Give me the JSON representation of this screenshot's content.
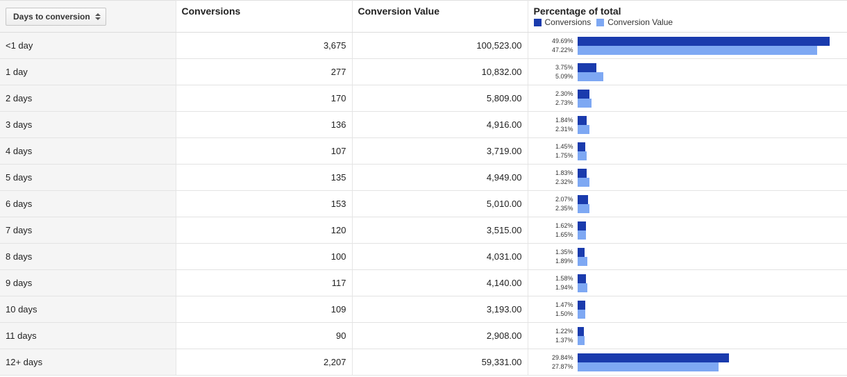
{
  "header": {
    "sort_label": "Days to conversion",
    "conversions": "Conversions",
    "conversion_value": "Conversion Value",
    "percentage": "Percentage of total",
    "legend_conversions": "Conversions",
    "legend_value": "Conversion Value"
  },
  "colors": {
    "conversions": "#1a3bad",
    "conversion_value": "#7ea8f3"
  },
  "rows": [
    {
      "label": "<1 day",
      "conversions": "3,675",
      "value": "100,523.00",
      "pct_conv": "49.69%",
      "pct_val": "47.22%"
    },
    {
      "label": "1 day",
      "conversions": "277",
      "value": "10,832.00",
      "pct_conv": "3.75%",
      "pct_val": "5.09%"
    },
    {
      "label": "2 days",
      "conversions": "170",
      "value": "5,809.00",
      "pct_conv": "2.30%",
      "pct_val": "2.73%"
    },
    {
      "label": "3 days",
      "conversions": "136",
      "value": "4,916.00",
      "pct_conv": "1.84%",
      "pct_val": "2.31%"
    },
    {
      "label": "4 days",
      "conversions": "107",
      "value": "3,719.00",
      "pct_conv": "1.45%",
      "pct_val": "1.75%"
    },
    {
      "label": "5 days",
      "conversions": "135",
      "value": "4,949.00",
      "pct_conv": "1.83%",
      "pct_val": "2.32%"
    },
    {
      "label": "6 days",
      "conversions": "153",
      "value": "5,010.00",
      "pct_conv": "2.07%",
      "pct_val": "2.35%"
    },
    {
      "label": "7 days",
      "conversions": "120",
      "value": "3,515.00",
      "pct_conv": "1.62%",
      "pct_val": "1.65%"
    },
    {
      "label": "8 days",
      "conversions": "100",
      "value": "4,031.00",
      "pct_conv": "1.35%",
      "pct_val": "1.89%"
    },
    {
      "label": "9 days",
      "conversions": "117",
      "value": "4,140.00",
      "pct_conv": "1.58%",
      "pct_val": "1.94%"
    },
    {
      "label": "10 days",
      "conversions": "109",
      "value": "3,193.00",
      "pct_conv": "1.47%",
      "pct_val": "1.50%"
    },
    {
      "label": "11 days",
      "conversions": "90",
      "value": "2,908.00",
      "pct_conv": "1.22%",
      "pct_val": "1.37%"
    },
    {
      "label": "12+ days",
      "conversions": "2,207",
      "value": "59,331.00",
      "pct_conv": "29.84%",
      "pct_val": "27.87%"
    }
  ]
}
